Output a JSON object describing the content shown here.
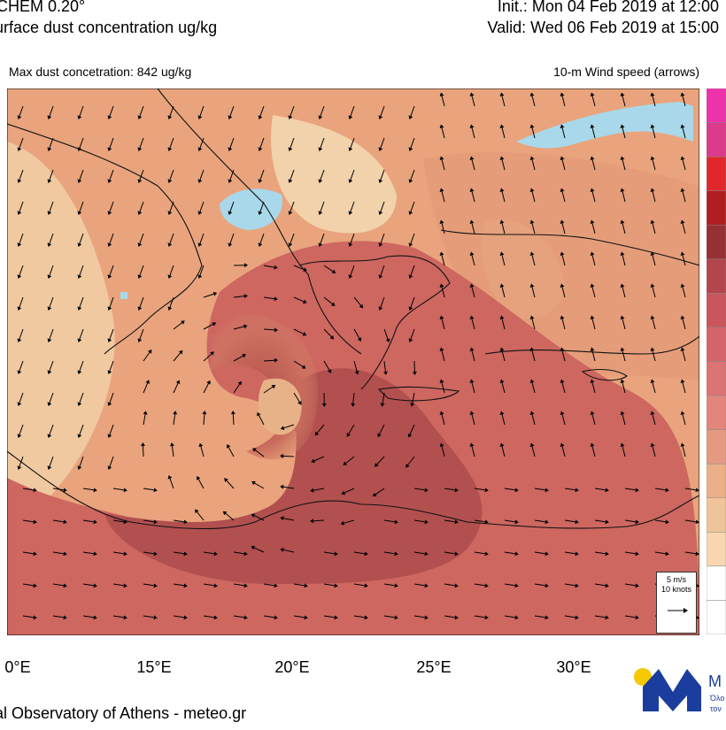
{
  "header": {
    "model_title": "CHEM 0.20°",
    "variable": "urface dust concentration ug/kg",
    "init": "Init.:  Mon 04 Feb 2019 at 12:00",
    "valid": "Valid: Wed 06 Feb 2019 at 15:00"
  },
  "map": {
    "max_label": "Max dust concetration: 842 ug/kg",
    "wind_label": "10-m Wind speed (arrows)",
    "x_ticks": [
      "0°E",
      "15°E",
      "20°E",
      "25°E",
      "30°E"
    ],
    "legend": {
      "speed": "5 m/s",
      "knots": "10 knots"
    },
    "colors": {
      "sea": "#a8d8ea",
      "low_dust": "#f2cfa5",
      "mid_dust": "#e8a57c",
      "high_dust": "#d2665c",
      "very_high_dust": "#a8484a"
    },
    "colorbar": [
      "#ee33aa",
      "#dc3a8c",
      "#e0282c",
      "#b01e22",
      "#963034",
      "#b2464c",
      "#c8565c",
      "#d4646a",
      "#dc7474",
      "#e2857c",
      "#e49a80",
      "#ebb087",
      "#f0c49a",
      "#f7d6b0",
      "#ffffff",
      "#ffffff"
    ]
  },
  "footer": {
    "text": "al Observatory of Athens - meteo.gr",
    "logo_letter": "M",
    "logo_side_text": "M",
    "logo_side_sub1": "Όλο",
    "logo_side_sub2": "τον"
  }
}
